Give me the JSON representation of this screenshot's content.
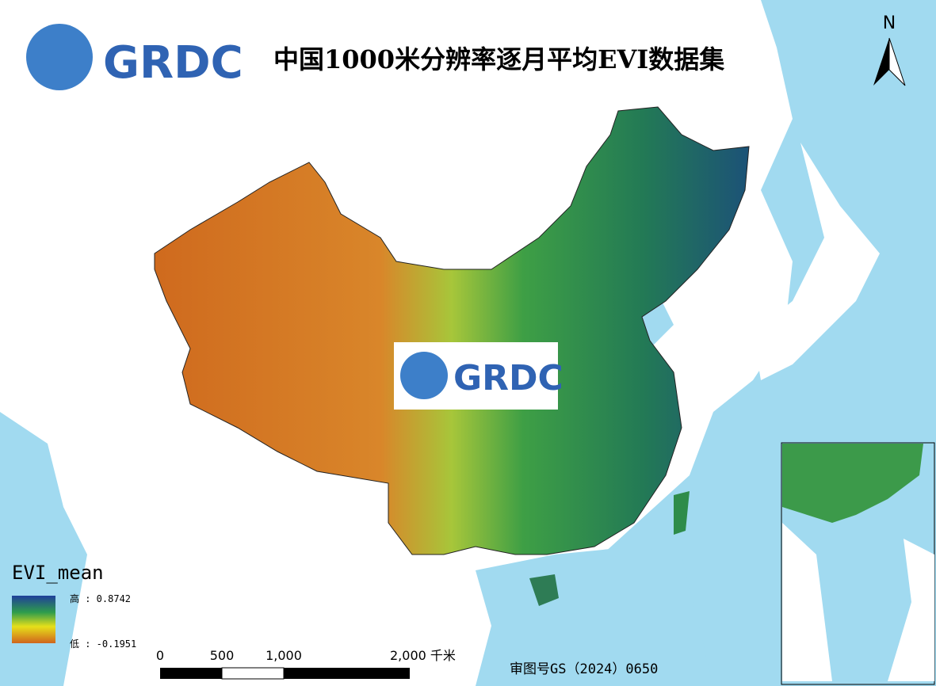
{
  "header": {
    "logo": "GRDC",
    "title": "中国1000米分辨率逐月平均EVI数据集"
  },
  "north_arrow": "N",
  "watermark": "GRDC",
  "legend": {
    "title": "EVI_mean",
    "high": "高 : 0.8742",
    "low": "低 : -0.1951"
  },
  "scale_bar": {
    "labels": [
      "0",
      "500",
      "1,000",
      "2,000 千米"
    ]
  },
  "approval_number": "审图号GS（2024）0650"
}
